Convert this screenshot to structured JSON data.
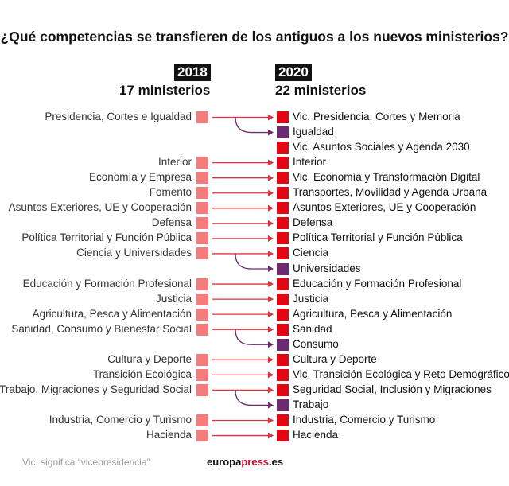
{
  "title": "¿Qué competencias se transfieren de los antiguos a los nuevos ministerios?",
  "left_header": {
    "year": "2018",
    "count": "17 ministerios"
  },
  "right_header": {
    "year": "2020",
    "count": "22 ministerios"
  },
  "colors": {
    "old": "#f47c7c",
    "new": "#e30613",
    "split": "#6e2a6e",
    "arrow": "#e0303a"
  },
  "new_ministries": [
    {
      "label": "Vic. Presidencia, Cortes y Memoria",
      "from": "Presidencia, Cortes e Igualdad",
      "kind": "main"
    },
    {
      "label": "Igualdad",
      "kind": "split"
    },
    {
      "label": "Vic. Asuntos Sociales y Agenda 2030",
      "kind": "new"
    },
    {
      "label": "Interior",
      "from": "Interior",
      "kind": "main"
    },
    {
      "label": "Vic. Economía y Transformación Digital",
      "from": "Economía y Empresa",
      "kind": "main"
    },
    {
      "label": "Transportes, Movilidad y Agenda Urbana",
      "from": "Fomento",
      "kind": "main"
    },
    {
      "label": "Asuntos Exteriores, UE y Cooperación",
      "from": "Asuntos Exteriores, UE y Cooperación",
      "kind": "main"
    },
    {
      "label": "Defensa",
      "from": "Defensa",
      "kind": "main"
    },
    {
      "label": "Política Territorial y Función Pública",
      "from": "Política Territorial y Función Pública",
      "kind": "main"
    },
    {
      "label": "Ciencia",
      "from": "Ciencia y Universidades",
      "kind": "main"
    },
    {
      "label": "Universidades",
      "kind": "split"
    },
    {
      "label": "Educación y Formación Profesional",
      "from": "Educación y Formación Profesional",
      "kind": "main"
    },
    {
      "label": "Justicia",
      "from": "Justicia",
      "kind": "main"
    },
    {
      "label": "Agricultura, Pesca y Alimentación",
      "from": "Agricultura, Pesca y Alimentación",
      "kind": "main"
    },
    {
      "label": "Sanidad",
      "from": "Sanidad, Consumo y Bienestar Social",
      "kind": "main"
    },
    {
      "label": "Consumo",
      "kind": "split"
    },
    {
      "label": "Cultura y Deporte",
      "from": "Cultura y Deporte",
      "kind": "main"
    },
    {
      "label": "Vic. Transición Ecológica y Reto Demográfico",
      "from": "Transición Ecológica",
      "kind": "main"
    },
    {
      "label": "Seguridad Social, Inclusión y Migraciones",
      "from": "Trabajo, Migraciones y Seguridad Social",
      "kind": "main"
    },
    {
      "label": "Trabajo",
      "kind": "split"
    },
    {
      "label": "Industria, Comercio y Turismo",
      "from": "Industria, Comercio y Turismo",
      "kind": "main"
    },
    {
      "label": "Hacienda",
      "from": "Hacienda",
      "kind": "main"
    }
  ],
  "footer": {
    "note": "Vic. significa “vicepresidencia”",
    "logo_a": "europa",
    "logo_b": "press",
    "logo_c": ".es"
  }
}
